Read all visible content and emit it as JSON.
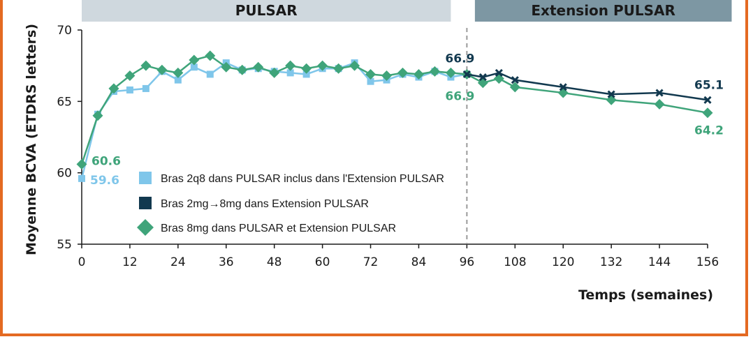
{
  "phase_bars": [
    {
      "label": "PULSAR",
      "x_start": 0,
      "x_end": 92,
      "color": "#cfd8de",
      "text_color": "#1a1a1a"
    },
    {
      "label": "Extension PULSAR",
      "x_start": 98,
      "x_end": 162,
      "color": "#7d97a3",
      "text_color": "#1a1a1a"
    }
  ],
  "colors": {
    "light_blue": "#7fc6ea",
    "navy": "#12394f",
    "green": "#3fa47a",
    "frame": "#e46a22",
    "axis": "#1a1a1a",
    "divider": "#9a9a9a"
  },
  "chart_data": {
    "type": "line",
    "xlabel": "Temps (semaines)",
    "ylabel": "Moyenne BCVA (ETDRS letters)",
    "xlim": [
      0,
      156
    ],
    "ylim": [
      55,
      70
    ],
    "xticks": [
      0,
      12,
      24,
      36,
      48,
      60,
      72,
      84,
      96,
      108,
      120,
      132,
      144,
      156
    ],
    "yticks": [
      55,
      60,
      65,
      70
    ],
    "divider_x": 96,
    "legend_position": "bottom-left",
    "grid": false,
    "series": [
      {
        "name": "Bras 2q8 dans PULSAR inclus dans l'Extension PULSAR",
        "color_key": "light_blue",
        "marker": "square",
        "x": [
          0,
          4,
          8,
          12,
          16,
          20,
          24,
          28,
          32,
          36,
          40,
          44,
          48,
          52,
          56,
          60,
          64,
          68,
          72,
          76,
          80,
          84,
          88,
          92,
          96
        ],
        "y": [
          59.6,
          64.1,
          65.7,
          65.8,
          65.9,
          67.1,
          66.5,
          67.4,
          66.9,
          67.7,
          67.2,
          67.3,
          67.1,
          67.0,
          66.9,
          67.3,
          67.3,
          67.7,
          66.4,
          66.5,
          66.9,
          66.7,
          67.1,
          66.7,
          66.9
        ]
      },
      {
        "name": "Bras 2mg→8mg dans Extension PULSAR",
        "color_key": "navy",
        "marker": "x",
        "x": [
          96,
          100,
          104,
          108,
          120,
          132,
          144,
          156
        ],
        "y": [
          66.9,
          66.7,
          67.0,
          66.5,
          66.0,
          65.5,
          65.6,
          65.1
        ]
      },
      {
        "name": "Bras 8mg dans PULSAR et Extension PULSAR",
        "color_key": "green",
        "marker": "diamond",
        "x": [
          0,
          4,
          8,
          12,
          16,
          20,
          24,
          28,
          32,
          36,
          40,
          44,
          48,
          52,
          56,
          60,
          64,
          68,
          72,
          76,
          80,
          84,
          88,
          92,
          96,
          100,
          104,
          108,
          120,
          132,
          144,
          156
        ],
        "y": [
          60.6,
          64.0,
          65.9,
          66.8,
          67.5,
          67.2,
          67.0,
          67.9,
          68.2,
          67.4,
          67.2,
          67.4,
          67.0,
          67.5,
          67.3,
          67.5,
          67.3,
          67.5,
          66.9,
          66.8,
          67.0,
          66.9,
          67.1,
          67.0,
          66.9,
          66.3,
          66.6,
          66.0,
          65.6,
          65.1,
          64.8,
          64.2
        ]
      }
    ],
    "annotations": [
      {
        "text": "60.6",
        "x": 0,
        "y": 60.6,
        "color_key": "green"
      },
      {
        "text": "59.6",
        "x": 0,
        "y": 59.6,
        "color_key": "light_blue"
      },
      {
        "text": "66.9",
        "x": 96,
        "y": 66.9,
        "color_key": "navy"
      },
      {
        "text": "66.9",
        "x": 96,
        "y": 66.9,
        "color_key": "green"
      },
      {
        "text": "65.1",
        "x": 156,
        "y": 65.1,
        "color_key": "navy"
      },
      {
        "text": "64.2",
        "x": 156,
        "y": 64.2,
        "color_key": "green"
      }
    ]
  }
}
